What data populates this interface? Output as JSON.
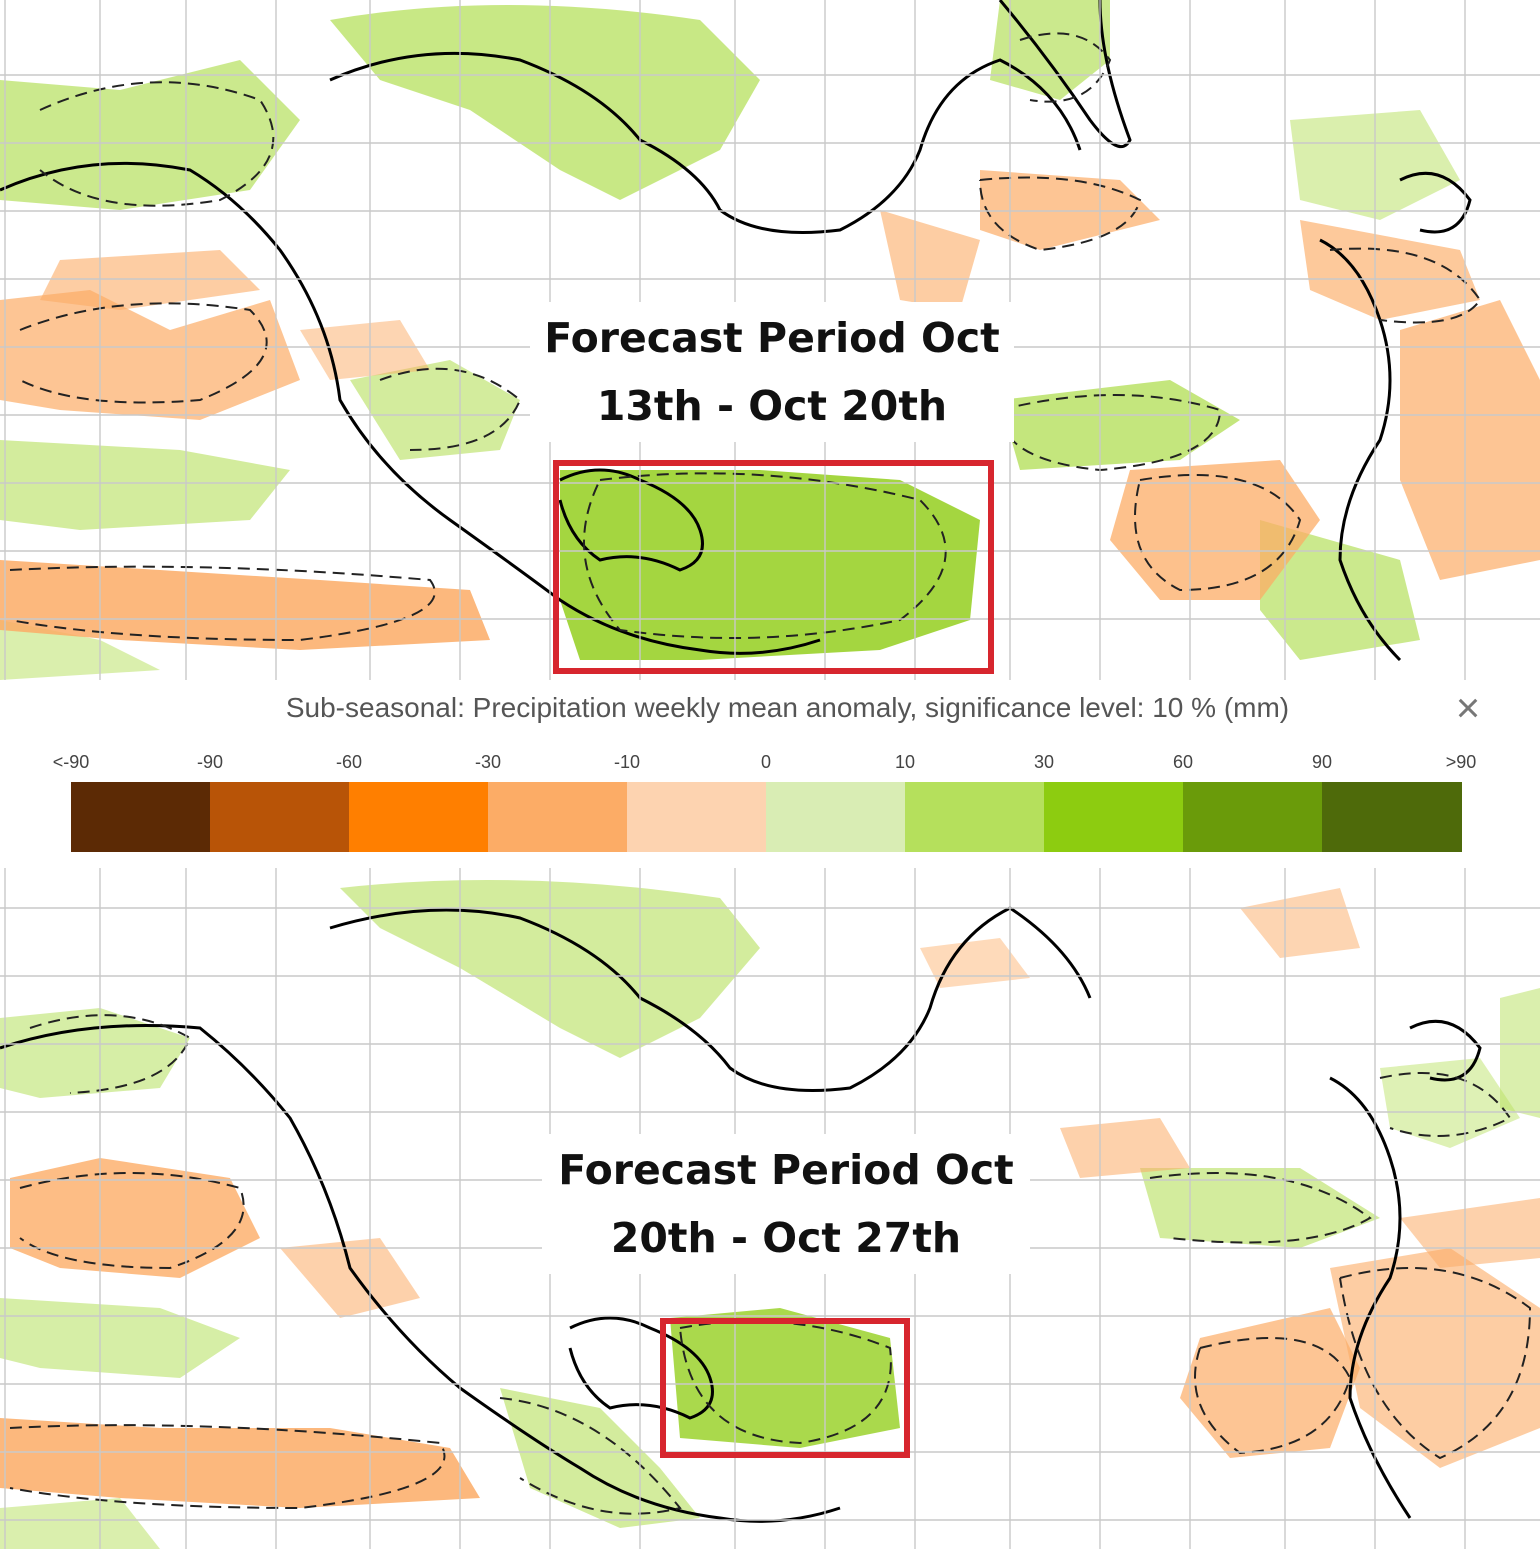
{
  "panels": [
    {
      "label_lines": [
        "Forecast Period Oct",
        "13th - Oct 20th"
      ]
    },
    {
      "label_lines": [
        "Forecast Period Oct",
        "20th - Oct 27th"
      ]
    }
  ],
  "legend": {
    "title": "Sub-seasonal: Precipitation weekly mean anomaly, significance level: 10 % (mm)",
    "close_symbol": "×",
    "ticks": [
      "<-90",
      "-90",
      "-60",
      "-30",
      "-10",
      "0",
      "10",
      "30",
      "60",
      "90",
      ">90"
    ],
    "colors": [
      "#5c2a05",
      "#b85407",
      "#ff7f00",
      "#fcac66",
      "#fdd3b0",
      "#d9edb4",
      "#b5e05c",
      "#8dcc10",
      "#6a9b0a",
      "#4e6a0a"
    ]
  },
  "colors": {
    "highlight_box": "#d7262e",
    "map_background": "#ffffff",
    "gridline": "#c9c9c9",
    "coastline": "#000000"
  }
}
